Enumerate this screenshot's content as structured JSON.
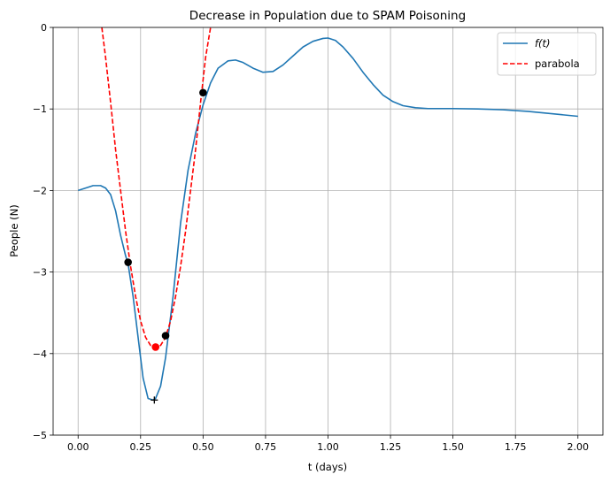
{
  "chart_data": {
    "type": "line",
    "title": "Decrease in Population due to SPAM Poisoning",
    "xlabel": "t (days)",
    "ylabel": "People (N)",
    "xlim": [
      -0.1,
      2.1
    ],
    "ylim": [
      -5,
      0
    ],
    "grid": true,
    "legend_position": "top-right",
    "x_ticks": [
      0.0,
      0.25,
      0.5,
      0.75,
      1.0,
      1.25,
      1.5,
      1.75,
      2.0
    ],
    "x_tick_labels": [
      "0.00",
      "0.25",
      "0.50",
      "0.75",
      "1.00",
      "1.25",
      "1.50",
      "1.75",
      "2.00"
    ],
    "y_ticks": [
      -5,
      -4,
      -3,
      -2,
      -1,
      0
    ],
    "y_tick_labels": [
      "−5",
      "−4",
      "−3",
      "−2",
      "−1",
      "0"
    ],
    "series": [
      {
        "name": "f(t)",
        "legend_label": "f(t)",
        "color": "#1f77b4",
        "style": "solid",
        "x": [
          0.0,
          0.03,
          0.06,
          0.09,
          0.11,
          0.13,
          0.15,
          0.17,
          0.19,
          0.2,
          0.22,
          0.24,
          0.26,
          0.28,
          0.3,
          0.31,
          0.33,
          0.35,
          0.38,
          0.41,
          0.44,
          0.47,
          0.5,
          0.53,
          0.56,
          0.6,
          0.63,
          0.66,
          0.7,
          0.74,
          0.78,
          0.82,
          0.86,
          0.9,
          0.94,
          0.98,
          1.0,
          1.03,
          1.06,
          1.1,
          1.14,
          1.18,
          1.22,
          1.26,
          1.3,
          1.35,
          1.4,
          1.5,
          1.6,
          1.7,
          1.8,
          1.9,
          2.0
        ],
        "y": [
          -2.0,
          -1.97,
          -1.94,
          -1.94,
          -1.97,
          -2.05,
          -2.25,
          -2.55,
          -2.8,
          -2.9,
          -3.3,
          -3.8,
          -4.3,
          -4.55,
          -4.57,
          -4.55,
          -4.4,
          -4.05,
          -3.3,
          -2.4,
          -1.75,
          -1.3,
          -0.95,
          -0.68,
          -0.5,
          -0.41,
          -0.4,
          -0.43,
          -0.5,
          -0.55,
          -0.54,
          -0.46,
          -0.35,
          -0.24,
          -0.17,
          -0.135,
          -0.13,
          -0.16,
          -0.24,
          -0.38,
          -0.55,
          -0.7,
          -0.83,
          -0.91,
          -0.96,
          -0.985,
          -0.995,
          -0.995,
          -1.0,
          -1.01,
          -1.03,
          -1.06,
          -1.09
        ]
      },
      {
        "name": "parabola",
        "legend_label": "parabola",
        "color": "#ff0000",
        "style": "dashed",
        "x": [
          0.095,
          0.11,
          0.13,
          0.15,
          0.17,
          0.19,
          0.21,
          0.23,
          0.25,
          0.27,
          0.29,
          0.31,
          0.33,
          0.35,
          0.37,
          0.39,
          0.41,
          0.43,
          0.45,
          0.47,
          0.49,
          0.51,
          0.53
        ],
        "y": [
          0.0,
          -0.37,
          -0.92,
          -1.5,
          -2.0,
          -2.5,
          -2.93,
          -3.3,
          -3.6,
          -3.8,
          -3.9,
          -3.92,
          -3.9,
          -3.8,
          -3.6,
          -3.3,
          -2.93,
          -2.5,
          -2.0,
          -1.5,
          -0.92,
          -0.37,
          0.0
        ]
      }
    ],
    "markers": [
      {
        "name": "sample-point-1",
        "x": 0.2,
        "y": -2.88,
        "color": "#000000",
        "shape": "circle"
      },
      {
        "name": "sample-point-2",
        "x": 0.35,
        "y": -3.78,
        "color": "#000000",
        "shape": "circle"
      },
      {
        "name": "sample-point-3",
        "x": 0.5,
        "y": -0.8,
        "color": "#000000",
        "shape": "circle"
      },
      {
        "name": "parabola-vertex",
        "x": 0.31,
        "y": -3.92,
        "color": "#ff0000",
        "shape": "circle"
      },
      {
        "name": "true-minimum",
        "x": 0.305,
        "y": -4.57,
        "color": "#000000",
        "shape": "plus"
      }
    ]
  }
}
